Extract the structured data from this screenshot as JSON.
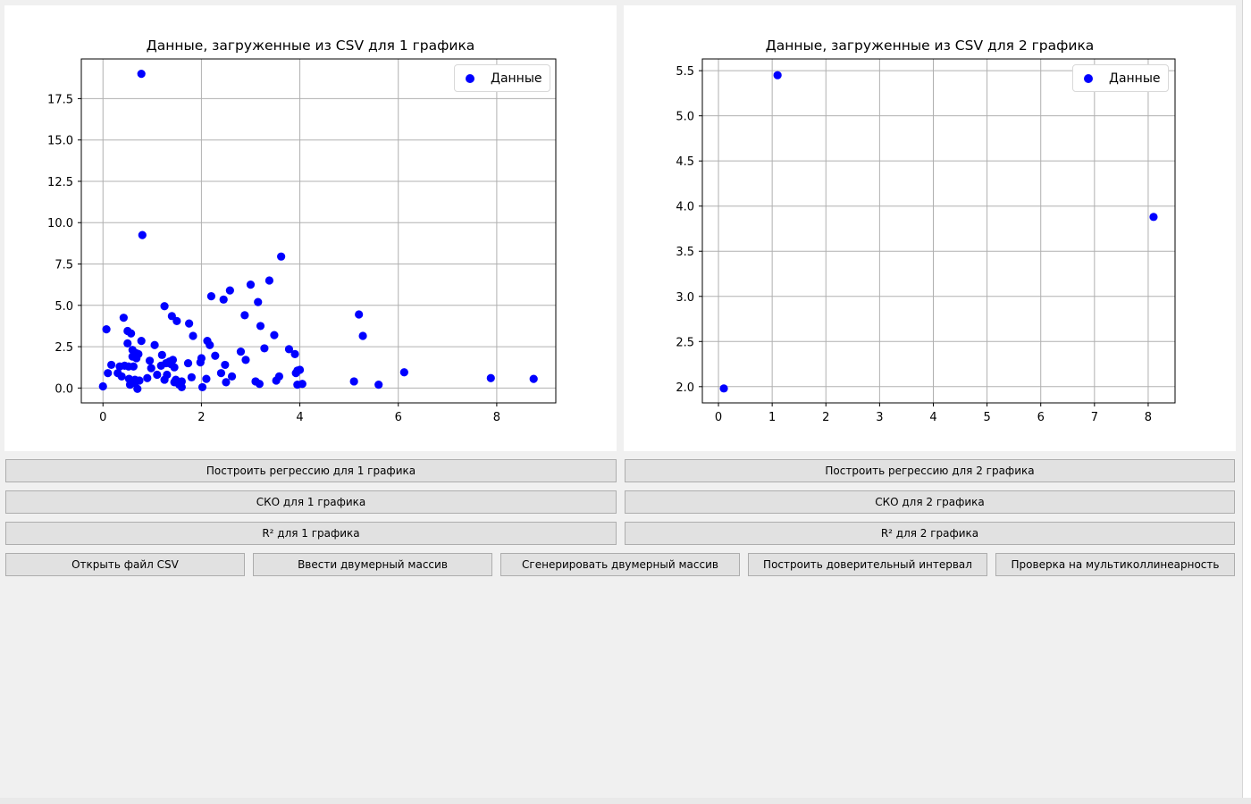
{
  "chart_data": [
    {
      "type": "scatter",
      "title": "Данные, загруженные из CSV для 1 графика",
      "xlabel": "",
      "ylabel": "",
      "xlim": [
        -0.44,
        9.2
      ],
      "ylim": [
        -0.9,
        19.9
      ],
      "xticks": [
        0,
        2,
        4,
        6,
        8
      ],
      "yticks": [
        0.0,
        2.5,
        5.0,
        7.5,
        10.0,
        12.5,
        15.0,
        17.5
      ],
      "ytick_labels": [
        "0.0",
        "2.5",
        "5.0",
        "7.5",
        "10.0",
        "12.5",
        "15.0",
        "17.5"
      ],
      "grid": true,
      "legend": {
        "position": "top-right",
        "entries": [
          "Данные"
        ]
      },
      "marker_color": "#0000ff",
      "series": [
        {
          "name": "Данные",
          "points": [
            [
              0.0,
              0.1
            ],
            [
              0.07,
              3.55
            ],
            [
              0.1,
              0.9
            ],
            [
              0.17,
              1.4
            ],
            [
              0.3,
              0.9
            ],
            [
              0.34,
              1.3
            ],
            [
              0.38,
              0.7
            ],
            [
              0.42,
              4.25
            ],
            [
              0.44,
              1.35
            ],
            [
              0.5,
              3.45
            ],
            [
              0.5,
              2.7
            ],
            [
              0.52,
              1.3
            ],
            [
              0.53,
              0.55
            ],
            [
              0.55,
              0.2
            ],
            [
              0.57,
              3.3
            ],
            [
              0.6,
              1.9
            ],
            [
              0.6,
              2.3
            ],
            [
              0.62,
              1.3
            ],
            [
              0.65,
              0.3
            ],
            [
              0.65,
              0.5
            ],
            [
              0.68,
              2.1
            ],
            [
              0.68,
              1.8
            ],
            [
              0.7,
              -0.05
            ],
            [
              0.72,
              2.05
            ],
            [
              0.74,
              0.45
            ],
            [
              0.78,
              19.0
            ],
            [
              0.78,
              2.85
            ],
            [
              0.8,
              9.25
            ],
            [
              0.9,
              0.6
            ],
            [
              0.95,
              1.65
            ],
            [
              0.98,
              1.2
            ],
            [
              1.05,
              2.6
            ],
            [
              1.1,
              0.8
            ],
            [
              1.18,
              1.35
            ],
            [
              1.2,
              2.0
            ],
            [
              1.25,
              4.95
            ],
            [
              1.25,
              0.5
            ],
            [
              1.28,
              1.5
            ],
            [
              1.3,
              0.8
            ],
            [
              1.35,
              1.6
            ],
            [
              1.38,
              1.45
            ],
            [
              1.4,
              4.35
            ],
            [
              1.42,
              1.7
            ],
            [
              1.45,
              1.25
            ],
            [
              1.45,
              0.35
            ],
            [
              1.48,
              0.5
            ],
            [
              1.5,
              4.05
            ],
            [
              1.55,
              0.2
            ],
            [
              1.6,
              0.05
            ],
            [
              1.6,
              0.4
            ],
            [
              1.73,
              1.5
            ],
            [
              1.75,
              3.9
            ],
            [
              1.8,
              0.65
            ],
            [
              1.83,
              3.15
            ],
            [
              1.98,
              1.55
            ],
            [
              2.0,
              1.8
            ],
            [
              2.02,
              0.05
            ],
            [
              2.1,
              0.55
            ],
            [
              2.12,
              2.85
            ],
            [
              2.17,
              2.6
            ],
            [
              2.2,
              5.55
            ],
            [
              2.28,
              1.95
            ],
            [
              2.4,
              0.9
            ],
            [
              2.45,
              5.35
            ],
            [
              2.48,
              1.4
            ],
            [
              2.5,
              0.35
            ],
            [
              2.58,
              5.9
            ],
            [
              2.62,
              0.7
            ],
            [
              2.8,
              2.2
            ],
            [
              2.88,
              4.4
            ],
            [
              2.9,
              1.7
            ],
            [
              3.0,
              6.25
            ],
            [
              3.1,
              0.4
            ],
            [
              3.15,
              5.2
            ],
            [
              3.18,
              0.25
            ],
            [
              3.2,
              3.75
            ],
            [
              3.28,
              2.4
            ],
            [
              3.38,
              6.5
            ],
            [
              3.48,
              3.2
            ],
            [
              3.52,
              0.45
            ],
            [
              3.58,
              0.7
            ],
            [
              3.62,
              7.95
            ],
            [
              3.78,
              2.35
            ],
            [
              3.9,
              2.05
            ],
            [
              3.92,
              0.9
            ],
            [
              3.95,
              0.2
            ],
            [
              3.95,
              1.05
            ],
            [
              4.0,
              1.1
            ],
            [
              4.05,
              0.25
            ],
            [
              5.1,
              0.4
            ],
            [
              5.2,
              4.45
            ],
            [
              5.28,
              3.15
            ],
            [
              5.6,
              0.2
            ],
            [
              6.12,
              0.95
            ],
            [
              7.88,
              0.6
            ],
            [
              8.75,
              0.55
            ]
          ]
        }
      ]
    },
    {
      "type": "scatter",
      "title": "Данные, загруженные из CSV для 2 графика",
      "xlabel": "",
      "ylabel": "",
      "xlim": [
        -0.3,
        8.5
      ],
      "ylim": [
        1.82,
        5.63
      ],
      "xticks": [
        0,
        1,
        2,
        3,
        4,
        5,
        6,
        7,
        8
      ],
      "yticks": [
        2.0,
        2.5,
        3.0,
        3.5,
        4.0,
        4.5,
        5.0,
        5.5
      ],
      "ytick_labels": [
        "2.0",
        "2.5",
        "3.0",
        "3.5",
        "4.0",
        "4.5",
        "5.0",
        "5.5"
      ],
      "grid": true,
      "legend": {
        "position": "top-right",
        "entries": [
          "Данные"
        ]
      },
      "marker_color": "#0000ff",
      "series": [
        {
          "name": "Данные",
          "points": [
            [
              0.1,
              1.98
            ],
            [
              1.1,
              5.45
            ],
            [
              8.1,
              3.88
            ]
          ]
        }
      ]
    }
  ],
  "buttons": {
    "regression_1": "Построить регрессию для 1 графика",
    "regression_2": "Построить регрессию для 2 графика",
    "sko_1": "СКО для 1 графика",
    "sko_2": "СКО для 2 графика",
    "r2_1": "R² для 1 графика",
    "r2_2": "R² для 2 графика",
    "open_csv": "Открыть файл CSV",
    "enter_array": "Ввести двумерный массив",
    "generate_array": "Сгенерировать двумерный массив",
    "confidence_interval": "Построить доверительный интервал",
    "multicollinearity": "Проверка на мультиколлинеарность"
  }
}
